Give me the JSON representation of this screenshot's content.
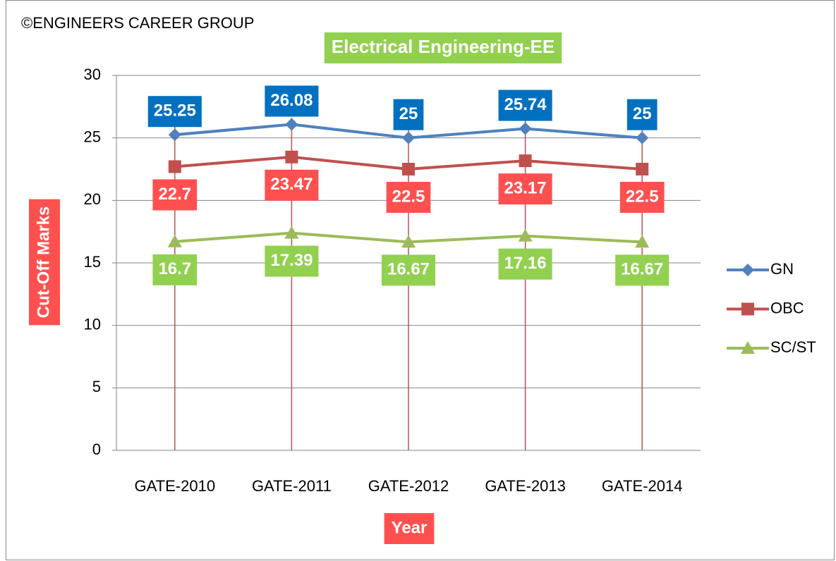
{
  "chart_data": {
    "type": "line",
    "title": "Electrical Engineering-EE",
    "watermark": "©ENGINEERS CAREER GROUP",
    "x_label": "Year",
    "y_label": "Cut-Off Marks",
    "categories": [
      "GATE-2010",
      "GATE-2011",
      "GATE-2012",
      "GATE-2013",
      "GATE-2014"
    ],
    "series": [
      {
        "name": "GN",
        "color": "#4f81bd",
        "label_color": "#0070c0",
        "marker": "diamond",
        "values": [
          25.25,
          26.08,
          25,
          25.74,
          25
        ]
      },
      {
        "name": "OBC",
        "color": "#c0504d",
        "label_color": "#ff5050",
        "marker": "square",
        "values": [
          22.7,
          23.47,
          22.5,
          23.17,
          22.5
        ]
      },
      {
        "name": "SC/ST",
        "color": "#9bbb59",
        "label_color": "#92d050",
        "marker": "triangle",
        "values": [
          16.7,
          17.39,
          16.67,
          17.16,
          16.67
        ]
      }
    ],
    "ylim": [
      0,
      30
    ],
    "yticks": [
      0,
      5,
      10,
      15,
      20,
      25,
      30
    ],
    "grid": true,
    "legend": "right"
  }
}
